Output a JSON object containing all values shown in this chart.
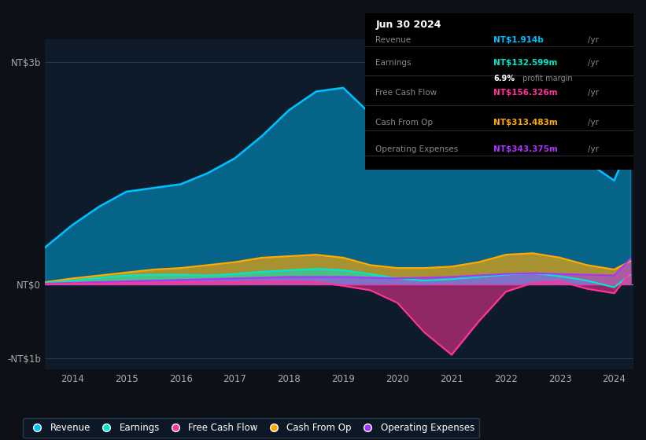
{
  "bg_color": "#0d1117",
  "plot_bg_color": "#0d1b2a",
  "years": [
    2013.5,
    2014.0,
    2014.5,
    2015.0,
    2015.5,
    2016.0,
    2016.5,
    2017.0,
    2017.5,
    2018.0,
    2018.5,
    2019.0,
    2019.5,
    2020.0,
    2020.5,
    2021.0,
    2021.5,
    2022.0,
    2022.5,
    2023.0,
    2023.5,
    2024.0,
    2024.3
  ],
  "revenue": [
    0.5,
    0.8,
    1.05,
    1.25,
    1.3,
    1.35,
    1.5,
    1.7,
    2.0,
    2.35,
    2.6,
    2.65,
    2.3,
    2.1,
    2.05,
    2.1,
    2.3,
    2.6,
    2.75,
    2.55,
    1.65,
    1.4,
    1.914
  ],
  "earnings": [
    0.02,
    0.05,
    0.09,
    0.12,
    0.13,
    0.13,
    0.12,
    0.14,
    0.17,
    0.19,
    0.21,
    0.19,
    0.14,
    0.08,
    0.05,
    0.07,
    0.1,
    0.13,
    0.15,
    0.11,
    0.05,
    -0.04,
    0.133
  ],
  "free_cash_flow": [
    0.0,
    0.01,
    0.01,
    0.02,
    0.02,
    0.03,
    0.03,
    0.03,
    0.04,
    0.04,
    0.03,
    -0.02,
    -0.08,
    -0.25,
    -0.65,
    -0.95,
    -0.5,
    -0.1,
    0.02,
    0.04,
    -0.06,
    -0.12,
    0.156
  ],
  "cash_from_op": [
    0.03,
    0.08,
    0.12,
    0.16,
    0.2,
    0.22,
    0.26,
    0.3,
    0.36,
    0.38,
    0.4,
    0.36,
    0.26,
    0.22,
    0.22,
    0.24,
    0.3,
    0.4,
    0.42,
    0.36,
    0.26,
    0.2,
    0.313
  ],
  "operating_expenses": [
    0.01,
    0.02,
    0.03,
    0.04,
    0.05,
    0.06,
    0.07,
    0.08,
    0.09,
    0.1,
    0.1,
    0.1,
    0.09,
    0.08,
    0.09,
    0.1,
    0.12,
    0.14,
    0.15,
    0.14,
    0.13,
    0.12,
    0.343
  ],
  "revenue_color": "#00bfff",
  "earnings_color": "#00e8cc",
  "fcf_color": "#ff3399",
  "cashop_color": "#ffaa00",
  "opex_color": "#aa33ff",
  "ylim": [
    -1.15,
    3.3
  ],
  "ytick_vals": [
    -1.0,
    0.0,
    3.0
  ],
  "ytick_labels": [
    "-NT$1b",
    "NT$0",
    "NT$3b"
  ],
  "xtick_years": [
    2014,
    2015,
    2016,
    2017,
    2018,
    2019,
    2020,
    2021,
    2022,
    2023,
    2024
  ],
  "info_box": {
    "date": "Jun 30 2024",
    "rows": [
      {
        "label": "Revenue",
        "val": "NT$1.914b",
        "val_color": "#00bfff",
        "suffix": "/yr",
        "extra": null
      },
      {
        "label": "Earnings",
        "val": "NT$132.599m",
        "val_color": "#00e8cc",
        "suffix": "/yr",
        "extra": "6.9% profit margin"
      },
      {
        "label": "Free Cash Flow",
        "val": "NT$156.326m",
        "val_color": "#ff3399",
        "suffix": "/yr",
        "extra": null
      },
      {
        "label": "Cash From Op",
        "val": "NT$313.483m",
        "val_color": "#ffaa00",
        "suffix": "/yr",
        "extra": null
      },
      {
        "label": "Operating Expenses",
        "val": "NT$343.375m",
        "val_color": "#aa33ff",
        "suffix": "/yr",
        "extra": null
      }
    ]
  },
  "legend_items": [
    {
      "label": "Revenue",
      "color": "#00bfff"
    },
    {
      "label": "Earnings",
      "color": "#00e8cc"
    },
    {
      "label": "Free Cash Flow",
      "color": "#ff3399"
    },
    {
      "label": "Cash From Op",
      "color": "#ffaa00"
    },
    {
      "label": "Operating Expenses",
      "color": "#aa33ff"
    }
  ]
}
